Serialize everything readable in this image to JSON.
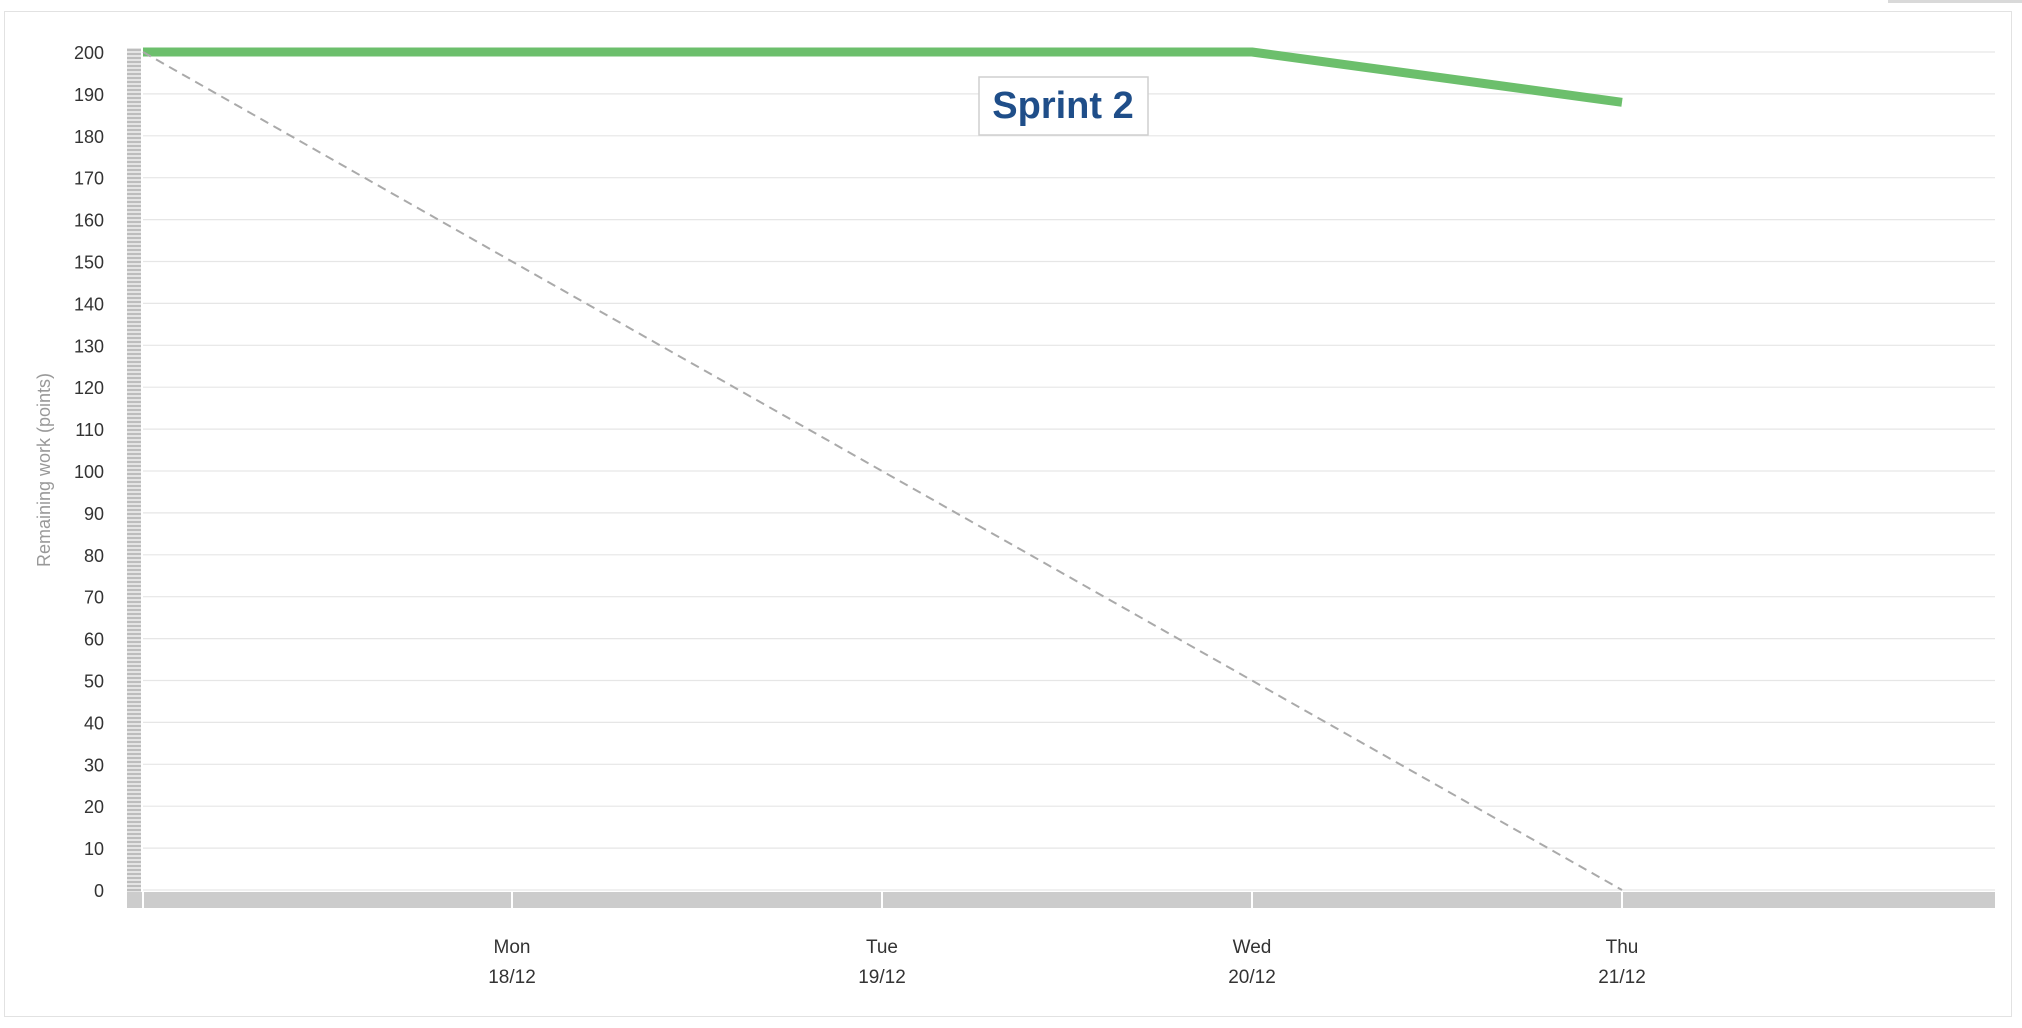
{
  "chart_data": {
    "type": "line",
    "title": "Sprint 2",
    "ylabel": "Remaining work (points)",
    "xlabel": "",
    "ylim": [
      0,
      200
    ],
    "yticks": [
      0,
      10,
      20,
      30,
      40,
      50,
      60,
      70,
      80,
      90,
      100,
      110,
      120,
      130,
      140,
      150,
      160,
      170,
      180,
      190,
      200
    ],
    "categories": [
      {
        "day": "Mon",
        "date": "18/12"
      },
      {
        "day": "Tue",
        "date": "19/12"
      },
      {
        "day": "Wed",
        "date": "20/12"
      },
      {
        "day": "Thu",
        "date": "21/12"
      }
    ],
    "series": [
      {
        "style": "solid",
        "color": "#6cbf6c",
        "points": [
          [
            "start",
            200
          ],
          [
            "20/12",
            200
          ],
          [
            "21/12",
            188
          ]
        ]
      },
      {
        "style": "dashed",
        "color": "#aaaaaa",
        "points": [
          [
            "start",
            200
          ],
          [
            "18/12",
            150
          ],
          [
            "19/12",
            100
          ],
          [
            "20/12",
            50
          ],
          [
            "21/12",
            0
          ]
        ]
      }
    ],
    "grid": true,
    "colors": {
      "title": "#1f4e89",
      "grid": "#e6e6e6",
      "axis_band": "#cccccc",
      "tick_text": "#333333",
      "axis_title": "#999999"
    }
  }
}
